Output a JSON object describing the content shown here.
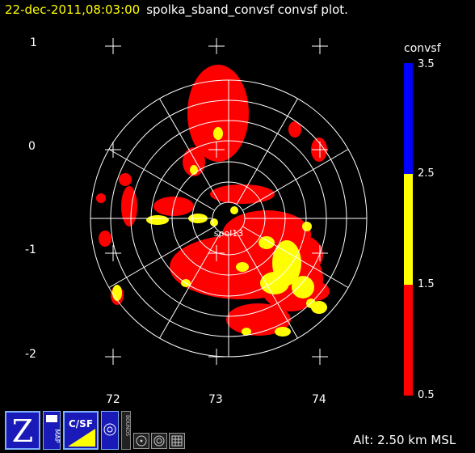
{
  "title": {
    "datetime": "22-dec-2011,08:03:00",
    "description": "spolka_sband_convsf convsf  plot."
  },
  "y_axis_labels": [
    "1",
    "0",
    "-1",
    "-2"
  ],
  "x_axis_labels": [
    "72",
    "73",
    "74"
  ],
  "colorbar": {
    "title": "convsf",
    "ticks": [
      "3.5",
      "2.5",
      "1.5",
      "0.5"
    ],
    "segments": [
      {
        "color": "#0000ff",
        "range": [
          2.5,
          3.5
        ]
      },
      {
        "color": "#ffff00",
        "range": [
          1.5,
          2.5
        ]
      },
      {
        "color": "#ff0000",
        "range": [
          0.5,
          1.5
        ]
      }
    ]
  },
  "radar_label": "spol13",
  "altitude_text": "Alt: 2.50 km MSL",
  "toolbar": {
    "items": [
      {
        "name": "zoom-tool-icon",
        "label": "Z"
      },
      {
        "name": "map-tool-icon",
        "label": "MAP"
      },
      {
        "name": "csf-tool-icon",
        "label": "C/SF"
      },
      {
        "name": "globe-tool-icon",
        "label": ""
      },
      {
        "name": "bounds-tool-icon",
        "label": "BOUNDS"
      },
      {
        "name": "target-tool-icon",
        "label": ""
      },
      {
        "name": "ring-tool-icon",
        "label": ""
      },
      {
        "name": "grid-tool-icon",
        "label": ""
      }
    ]
  },
  "colors": {
    "background": "#000000",
    "title_date": "#ffff00",
    "weak": "#ff0000",
    "moderate": "#ffff00",
    "strong": "#0000ff"
  }
}
